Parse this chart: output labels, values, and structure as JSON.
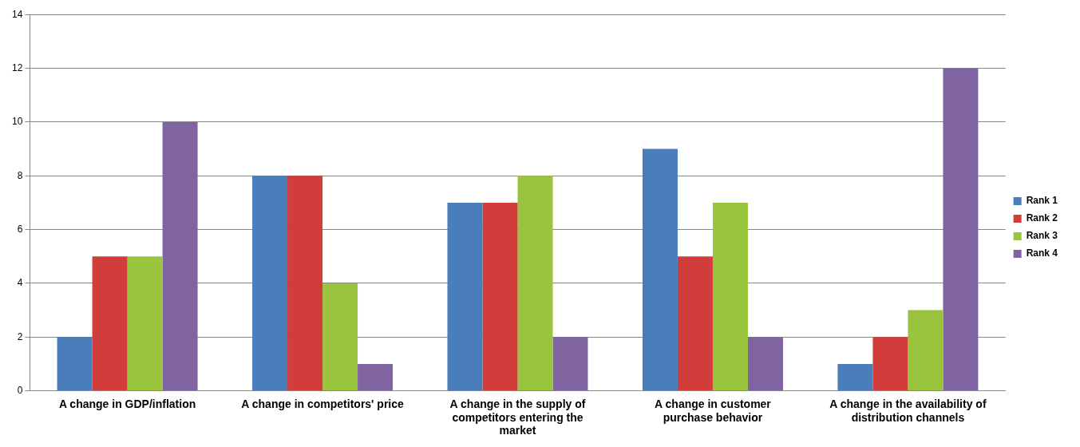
{
  "chart_data": {
    "type": "bar",
    "categories": [
      "A change in GDP/inflation",
      "A change in competitors' price",
      "A change in the supply of competitors entering the market",
      "A change in customer purchase behavior",
      "A change in the availability of distribution channels"
    ],
    "series": [
      {
        "name": "Rank 1",
        "color": "#4a7ebb",
        "values": [
          2,
          8,
          7,
          9,
          1
        ]
      },
      {
        "name": "Rank 2",
        "color": "#d13d3a",
        "values": [
          5,
          8,
          7,
          5,
          2
        ]
      },
      {
        "name": "Rank 3",
        "color": "#9bc43e",
        "values": [
          5,
          4,
          8,
          7,
          3
        ]
      },
      {
        "name": "Rank 4",
        "color": "#8064a2",
        "values": [
          10,
          1,
          2,
          2,
          12
        ]
      }
    ],
    "ylim": [
      0,
      14
    ],
    "yticks": [
      0,
      2,
      4,
      6,
      8,
      10,
      12,
      14
    ],
    "grid": "y",
    "legend": "right"
  }
}
